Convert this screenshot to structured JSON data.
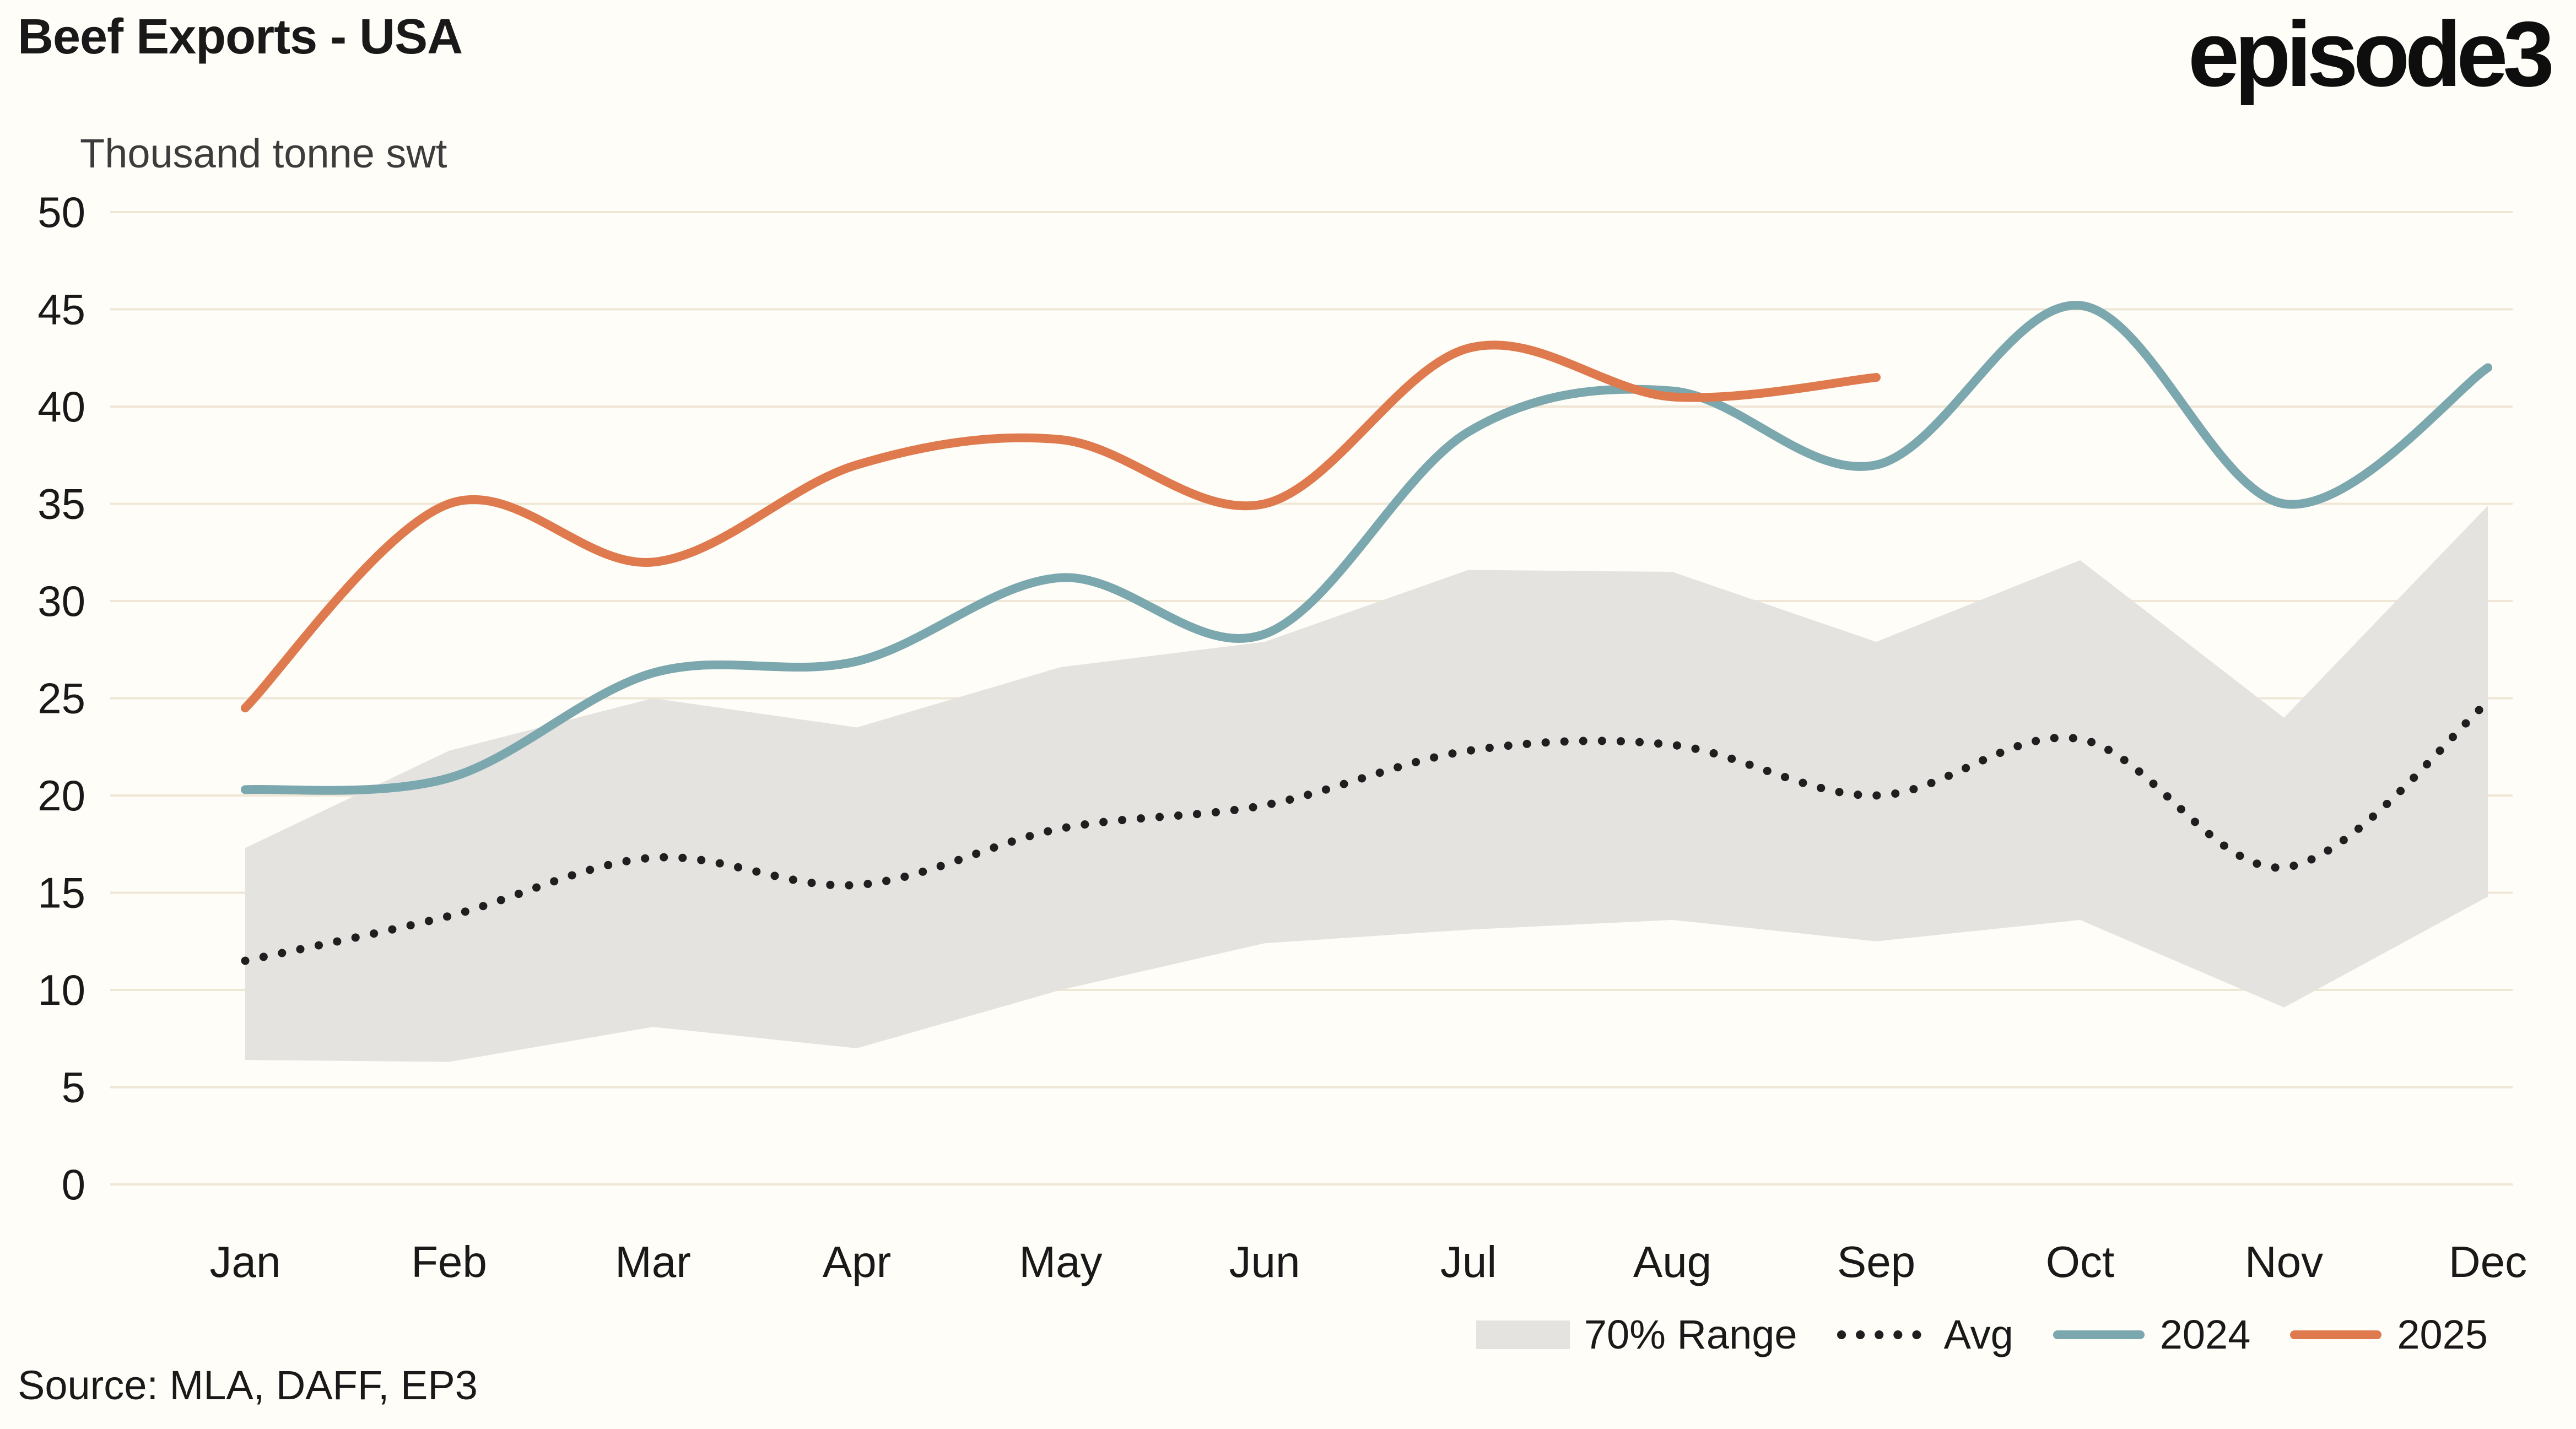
{
  "header": {
    "title": "Beef Exports - USA",
    "subtitle": "Thousand tonne swt",
    "logo": "episode3"
  },
  "source": "Source: MLA, DAFF, EP3",
  "colors": {
    "background": "#FFFDF7",
    "grid": "#EFE6D6",
    "band": "#E4E3E0",
    "text": "#191919",
    "subtitle_text": "#3C3C3C",
    "series": {
      "Avg": "#1F1F1F",
      "2024": "#7BA7AE",
      "2025": "#DE7A4D"
    }
  },
  "legend": [
    {
      "label": "70% Range",
      "swatch": "band"
    },
    {
      "label": "Avg",
      "swatch": "dots"
    },
    {
      "label": "2024",
      "swatch": "line"
    },
    {
      "label": "2025",
      "swatch": "line"
    }
  ],
  "chart_data": {
    "type": "line",
    "title": "Beef Exports - USA",
    "ylabel": "Thousand tonne swt",
    "xlabel": "",
    "ylim": [
      0,
      50
    ],
    "ytick_step": 5,
    "grid": "horizontal",
    "legend_position": "bottom",
    "categories": [
      "Jan",
      "Feb",
      "Mar",
      "Apr",
      "May",
      "Jun",
      "Jul",
      "Aug",
      "Sep",
      "Oct",
      "Nov",
      "Dec"
    ],
    "band": {
      "name": "70% Range",
      "upper": [
        17.3,
        22.3,
        25.0,
        23.5,
        26.6,
        27.9,
        31.6,
        31.5,
        27.9,
        32.1,
        24.0,
        34.9
      ],
      "lower": [
        6.4,
        6.3,
        8.1,
        7.0,
        10.0,
        12.4,
        13.1,
        13.6,
        12.5,
        13.6,
        9.1,
        14.8
      ]
    },
    "series": [
      {
        "name": "Avg",
        "style": "dotted",
        "values": [
          11.5,
          13.8,
          16.8,
          15.4,
          18.3,
          19.5,
          22.3,
          22.6,
          20.0,
          22.9,
          16.3,
          24.8
        ]
      },
      {
        "name": "2024",
        "style": "solid",
        "values": [
          20.3,
          20.9,
          26.3,
          26.9,
          31.2,
          28.3,
          38.7,
          40.8,
          37.0,
          45.2,
          35.0,
          42.0
        ]
      },
      {
        "name": "2025",
        "style": "solid",
        "values": [
          24.5,
          35.0,
          32.0,
          37.0,
          38.3,
          35.0,
          43.0,
          40.5,
          41.5,
          null,
          null,
          null
        ]
      }
    ]
  }
}
